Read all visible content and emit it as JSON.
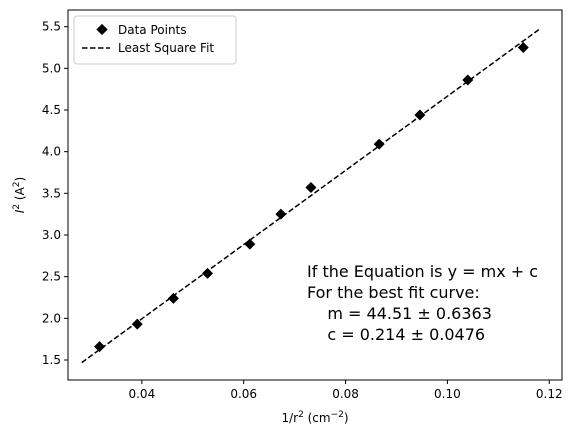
{
  "chart_data": {
    "type": "scatter",
    "xlim": [
      0.0255,
      0.1225
    ],
    "ylim": [
      1.26,
      5.7
    ],
    "xticks": [
      0.04,
      0.06,
      0.08,
      0.1,
      0.12
    ],
    "xtick_labels": [
      "0.04",
      "0.06",
      "0.08",
      "0.10",
      "0.12"
    ],
    "yticks": [
      1.5,
      2.0,
      2.5,
      3.0,
      3.5,
      4.0,
      4.5,
      5.0,
      5.5
    ],
    "ytick_labels": [
      "1.5",
      "2.0",
      "2.5",
      "3.0",
      "3.5",
      "4.0",
      "4.5",
      "5.0",
      "5.5"
    ],
    "xlabel_base": "1/r",
    "xlabel_sup": "2",
    "xlabel_unit": " (cm",
    "xlabel_unit_sup": "−2",
    "xlabel_close": ")",
    "ylabel_base": "I",
    "ylabel_sup": "2",
    "ylabel_unit": " (A",
    "ylabel_unit_sup": "2",
    "ylabel_close": ")",
    "grid": false,
    "legend_position": "top-left",
    "series": [
      {
        "name": "Data Points",
        "marker": "diamond",
        "color": "#000000",
        "x": [
          0.0317,
          0.0391,
          0.0462,
          0.0529,
          0.0612,
          0.0673,
          0.0732,
          0.0866,
          0.0946,
          0.104,
          0.1149
        ],
        "y": [
          1.66,
          1.93,
          2.24,
          2.54,
          2.89,
          3.25,
          3.57,
          4.09,
          4.44,
          4.86,
          5.25
        ]
      },
      {
        "name": "Least Square Fit",
        "style": "dashed",
        "color": "#000000",
        "x": [
          0.0282,
          0.1183
        ],
        "y": [
          1.469,
          5.48
        ]
      }
    ],
    "annotation": [
      "If the Equation is y = mx + c",
      "For the best fit curve:",
      "    m = 44.51 ± 0.6363",
      "    c = 0.214 ± 0.0476"
    ]
  }
}
